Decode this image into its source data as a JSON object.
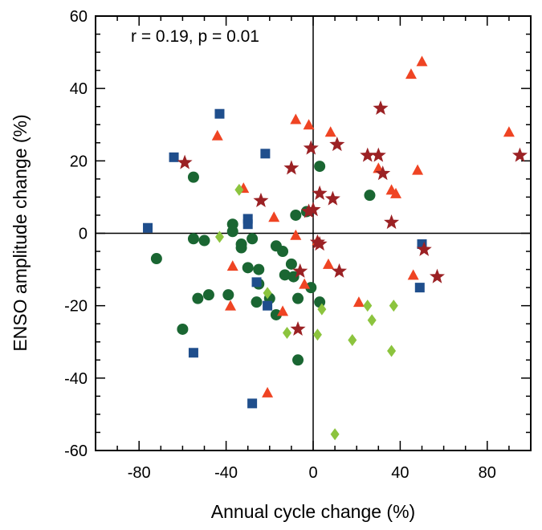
{
  "chart_data": {
    "type": "scatter",
    "xlabel": "Annual cycle change (%)",
    "ylabel": "ENSO amplitude change (%)",
    "annotation": "r = 0.19, p = 0.01",
    "xlim": [
      -100,
      100
    ],
    "ylim": [
      -60,
      60
    ],
    "x_ticks": [
      -80,
      -40,
      0,
      40,
      80
    ],
    "x_tick_labels": [
      "-80",
      "-40",
      "0",
      "40",
      "80"
    ],
    "y_ticks": [
      -60,
      -40,
      -20,
      0,
      20,
      40,
      60
    ],
    "y_tick_labels": [
      "-60",
      "-40",
      "-20",
      "0",
      "20",
      "40",
      "60"
    ],
    "grid": false,
    "legend": "none",
    "reference_lines": {
      "x": 0,
      "y": 0
    },
    "series": [
      {
        "marker": "circle",
        "color": "#1a6632",
        "points": [
          [
            -55,
            15.5
          ],
          [
            -60,
            -26.5
          ],
          [
            -72,
            -7
          ],
          [
            -55,
            -1.5
          ],
          [
            -50,
            -2
          ],
          [
            -53,
            -18
          ],
          [
            -48,
            -17
          ],
          [
            -39,
            -17
          ],
          [
            -37,
            2.5
          ],
          [
            -37,
            0.5
          ],
          [
            -33,
            -3
          ],
          [
            -33,
            -4
          ],
          [
            -30,
            -9.5
          ],
          [
            -28,
            -1.5
          ],
          [
            -25,
            -10
          ],
          [
            -25,
            -14
          ],
          [
            -26,
            -19
          ],
          [
            -20,
            -18
          ],
          [
            -17,
            -22.5
          ],
          [
            -17,
            -3.5
          ],
          [
            -14,
            -5
          ],
          [
            -13,
            -11.5
          ],
          [
            -10,
            -8.5
          ],
          [
            -9,
            -12
          ],
          [
            -8,
            5
          ],
          [
            -7,
            -18
          ],
          [
            -7,
            -35
          ],
          [
            -3,
            6
          ],
          [
            -1,
            -15
          ],
          [
            3,
            18.5
          ],
          [
            3,
            -19
          ],
          [
            26,
            10.5
          ]
        ]
      },
      {
        "marker": "square",
        "color": "#1f4e8c",
        "points": [
          [
            -43,
            33
          ],
          [
            -64,
            21
          ],
          [
            -22,
            22
          ],
          [
            -76,
            1.5
          ],
          [
            -30,
            4
          ],
          [
            -30,
            2.5
          ],
          [
            -26,
            -13.5
          ],
          [
            -21,
            -20
          ],
          [
            -55,
            -33
          ],
          [
            -28,
            -47
          ],
          [
            50,
            -3
          ],
          [
            49,
            -15
          ]
        ]
      },
      {
        "marker": "triangle",
        "color": "#ef4423",
        "points": [
          [
            -44,
            27
          ],
          [
            -32,
            12.5
          ],
          [
            -18,
            4.5
          ],
          [
            -37,
            -9
          ],
          [
            -38,
            -20
          ],
          [
            -21,
            -44
          ],
          [
            -8,
            31.5
          ],
          [
            -2,
            30
          ],
          [
            -8,
            -0.5
          ],
          [
            -14,
            -21.5
          ],
          [
            -4,
            -14
          ],
          [
            2,
            -2
          ],
          [
            7,
            -8.5
          ],
          [
            8,
            28
          ],
          [
            21,
            -19
          ],
          [
            30,
            18
          ],
          [
            36,
            12
          ],
          [
            38,
            11
          ],
          [
            48,
            17.5
          ],
          [
            45,
            44
          ],
          [
            50,
            47.5
          ],
          [
            46,
            -11.5
          ],
          [
            90,
            28
          ]
        ]
      },
      {
        "marker": "star",
        "color": "#9b2124",
        "points": [
          [
            -59,
            19.5
          ],
          [
            -24,
            9
          ],
          [
            -10,
            18
          ],
          [
            -1,
            23.5
          ],
          [
            0,
            6.5
          ],
          [
            -2,
            6
          ],
          [
            3,
            11
          ],
          [
            9,
            9.5
          ],
          [
            11,
            24.5
          ],
          [
            -6,
            -10.5
          ],
          [
            -7,
            -26.5
          ],
          [
            2,
            -2.5
          ],
          [
            3,
            -3
          ],
          [
            12,
            -10.5
          ],
          [
            25,
            21.5
          ],
          [
            30,
            21.5
          ],
          [
            31,
            34.5
          ],
          [
            32,
            16.5
          ],
          [
            36,
            3
          ],
          [
            51,
            -4.5
          ],
          [
            57,
            -12
          ],
          [
            95,
            21.5
          ]
        ]
      },
      {
        "marker": "diamond",
        "color": "#8cc43e",
        "points": [
          [
            -43,
            -1
          ],
          [
            -34,
            12
          ],
          [
            -21,
            -16.5
          ],
          [
            -12,
            -27.5
          ],
          [
            2,
            -28
          ],
          [
            4,
            -21
          ],
          [
            18,
            -29.5
          ],
          [
            25,
            -20
          ],
          [
            27,
            -24
          ],
          [
            36,
            -32.5
          ],
          [
            37,
            -20
          ],
          [
            10,
            -55.5
          ]
        ]
      }
    ]
  }
}
